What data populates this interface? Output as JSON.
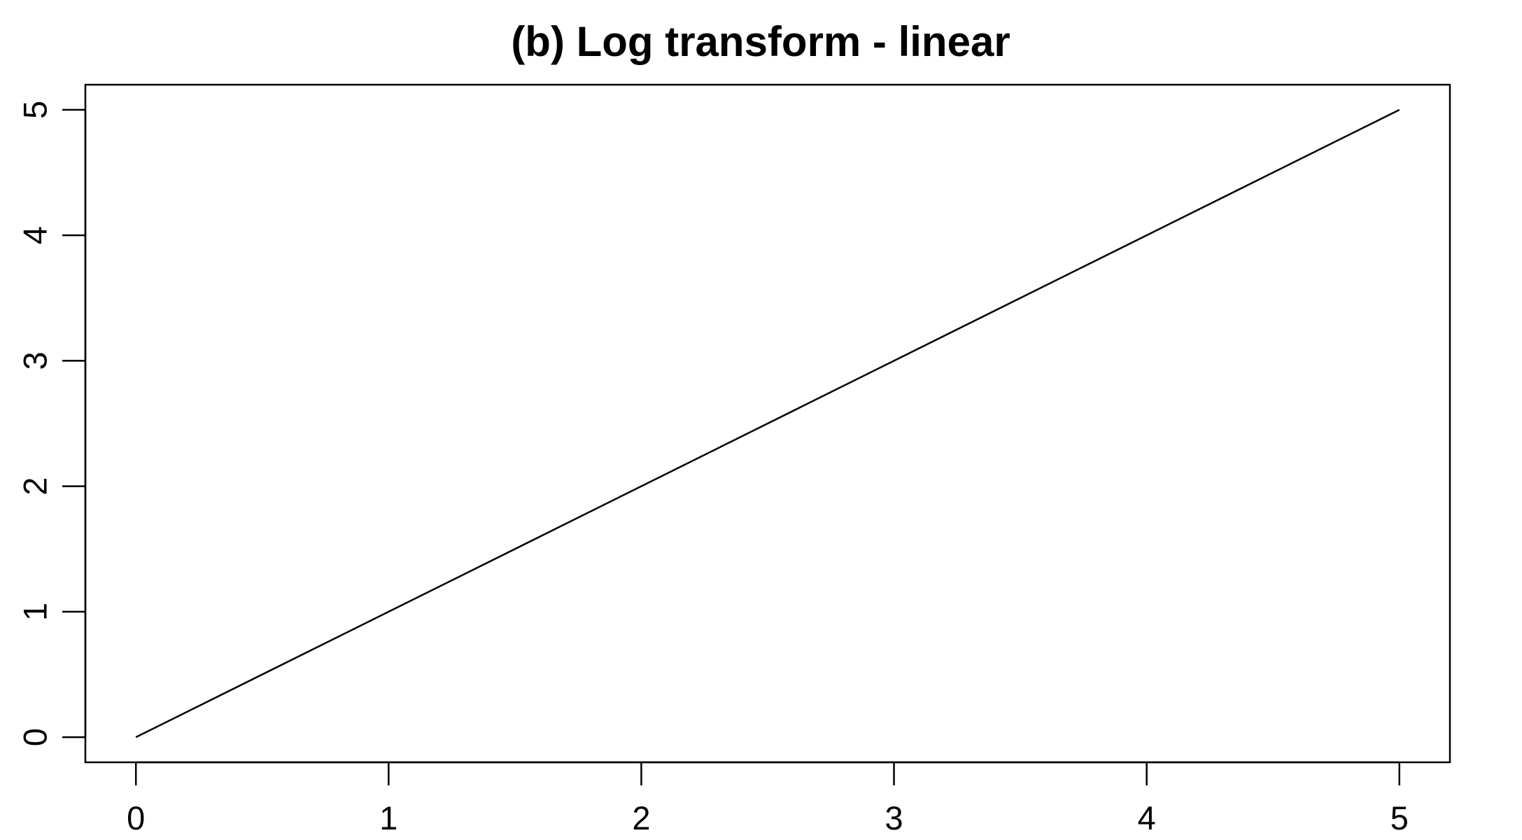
{
  "chart_data": {
    "type": "line",
    "title": "(b) Log transform - linear",
    "xlabel": "",
    "ylabel": "",
    "xlim": [
      -0.2,
      5.2
    ],
    "ylim": [
      -0.2,
      5.2
    ],
    "x_ticks": [
      0,
      1,
      2,
      3,
      4,
      5
    ],
    "x_tick_labels": [
      "0",
      "1",
      "2",
      "3",
      "4",
      "5"
    ],
    "y_ticks": [
      0,
      1,
      2,
      3,
      4,
      5
    ],
    "y_tick_labels": [
      "0",
      "1",
      "2",
      "3",
      "4",
      "5"
    ],
    "grid": false,
    "legend": "none",
    "series": [
      {
        "color": "#000000",
        "x": [
          0,
          1,
          2,
          3,
          4,
          5
        ],
        "y": [
          0,
          1,
          2,
          3,
          4,
          5
        ]
      }
    ]
  }
}
